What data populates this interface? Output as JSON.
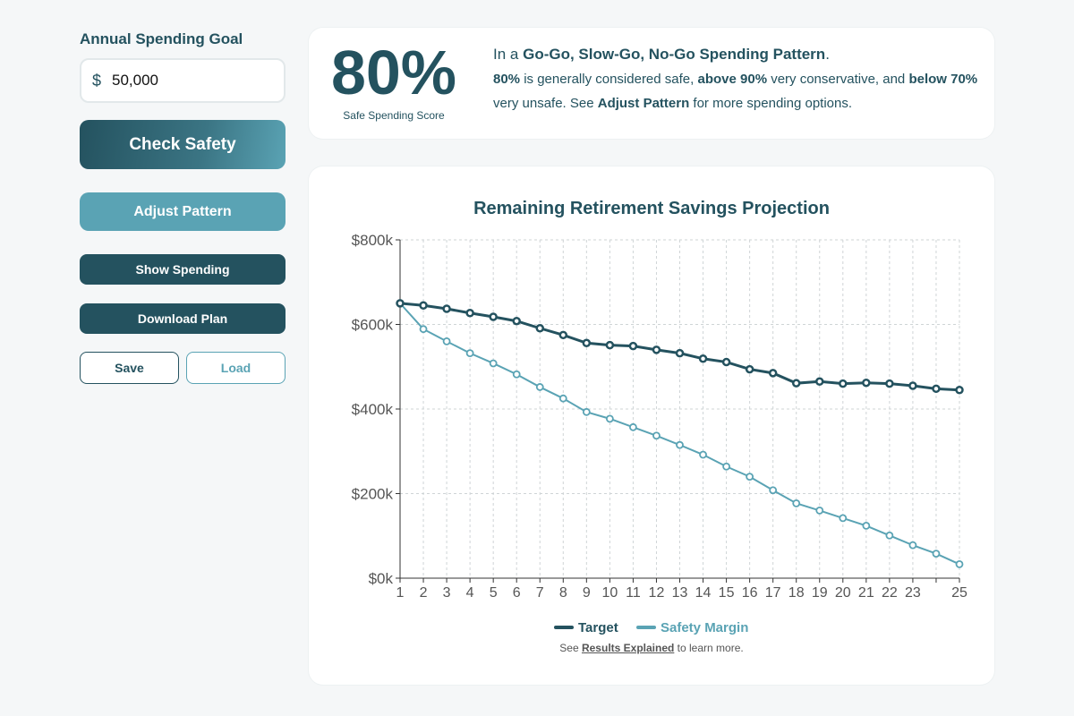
{
  "sidebar": {
    "goal_label": "Annual Spending Goal",
    "currency_symbol": "$",
    "goal_value": "50,000",
    "check_label": "Check Safety",
    "adjust_label": "Adjust Pattern",
    "show_label": "Show Spending",
    "download_label": "Download Plan",
    "save_label": "Save",
    "load_label": "Load"
  },
  "score": {
    "value": "80%",
    "caption": "Safe Spending Score",
    "line1_prefix": "In a ",
    "line1_pattern": "Go-Go, Slow-Go, No-Go Spending Pattern",
    "line1_suffix": ".",
    "line2_a": "80%",
    "line2_b": " is generally considered safe, ",
    "line2_c": "above 90%",
    "line2_d": " very conservative, and ",
    "line2_e": "below 70%",
    "line2_f": " very unsafe. See ",
    "line2_g": "Adjust Pattern",
    "line2_h": " for more spending options."
  },
  "colors": {
    "primary": "#24525f",
    "accent": "#5aa3b4"
  },
  "footer": {
    "prefix": "See ",
    "link": "Results Explained",
    "suffix": " to learn more."
  },
  "chart_data": {
    "type": "line",
    "title": "Remaining Retirement Savings Projection",
    "x": [
      1,
      2,
      3,
      4,
      5,
      6,
      7,
      8,
      9,
      10,
      11,
      12,
      13,
      14,
      15,
      16,
      17,
      18,
      19,
      20,
      21,
      22,
      23,
      24,
      25
    ],
    "x_tick_labels": [
      "1",
      "2",
      "3",
      "4",
      "5",
      "6",
      "7",
      "8",
      "9",
      "10",
      "11",
      "12",
      "13",
      "14",
      "15",
      "16",
      "17",
      "18",
      "19",
      "20",
      "21",
      "22",
      "23",
      "",
      "25"
    ],
    "y_ticks": [
      0,
      200000,
      400000,
      600000,
      800000
    ],
    "y_tick_labels": [
      "$0k",
      "$200k",
      "$400k",
      "$600k",
      "$800k"
    ],
    "ylim": [
      0,
      800000
    ],
    "grid": true,
    "legend_position": "bottom",
    "series": [
      {
        "name": "Target",
        "color": "#24525f",
        "values": [
          650000,
          645000,
          637000,
          627000,
          618000,
          608000,
          591000,
          575000,
          556000,
          551000,
          549000,
          540000,
          532000,
          519000,
          511000,
          494000,
          485000,
          461000,
          465000,
          460000,
          462000,
          460000,
          455000,
          448000,
          445000
        ]
      },
      {
        "name": "Safety Margin",
        "color": "#5aa3b4",
        "values": [
          650000,
          589000,
          560000,
          532000,
          508000,
          482000,
          452000,
          425000,
          393000,
          377000,
          357000,
          337000,
          315000,
          292000,
          264000,
          240000,
          208000,
          177000,
          160000,
          142000,
          124000,
          101000,
          78000,
          58000,
          33000
        ]
      }
    ]
  }
}
